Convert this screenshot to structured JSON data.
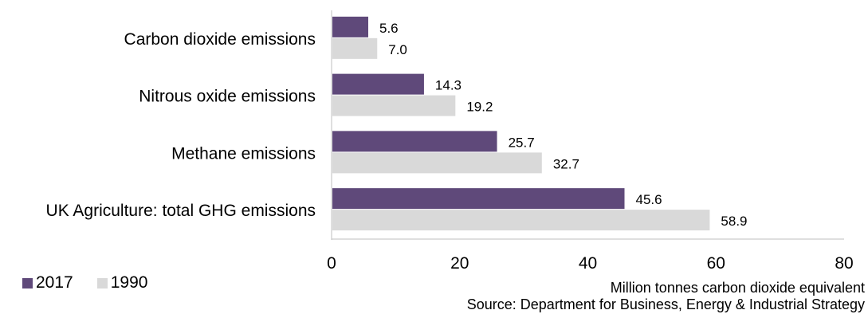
{
  "chart_data": {
    "type": "bar",
    "orientation": "horizontal",
    "categories": [
      "Carbon dioxide emissions",
      "Nitrous oxide emissions",
      "Methane emissions",
      "UK Agriculture: total GHG emissions"
    ],
    "series": [
      {
        "name": "2017",
        "color": "#5f497a",
        "values": [
          5.6,
          14.3,
          25.7,
          45.6
        ],
        "labels": [
          "5.6",
          "14.3",
          "25.7",
          "45.6"
        ]
      },
      {
        "name": "1990",
        "color": "#d9d9d9",
        "values": [
          7.0,
          19.2,
          32.7,
          58.9
        ],
        "labels": [
          "7.0",
          "19.2",
          "32.7",
          "58.9"
        ]
      }
    ],
    "xlim": [
      0,
      80
    ],
    "xticks": [
      "0",
      "20",
      "40",
      "60",
      "80"
    ],
    "xlabel": "Million tonnes carbon dioxide equivalent",
    "source": "Source: Department  for Business, Energy & Industrial Strategy",
    "grid": false,
    "legend_position": "bottom-left"
  }
}
